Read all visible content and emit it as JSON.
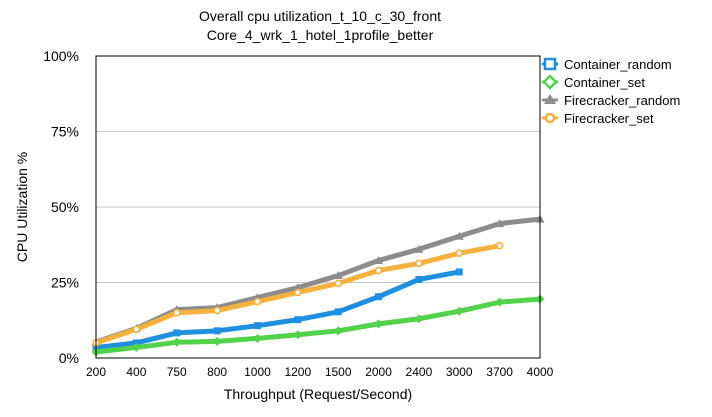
{
  "chart_data": {
    "type": "line",
    "title_line1": "Overall cpu utilization_t_10_c_30_front",
    "title_line2": "Core_4_wrk_1_hotel_1profile_better",
    "xlabel": "Throughput (Request/Second)",
    "ylabel": "CPU Utilization %",
    "categories": [
      "200",
      "400",
      "750",
      "800",
      "1000",
      "1200",
      "1500",
      "2000",
      "2400",
      "3000",
      "3700",
      "4000"
    ],
    "y_ticks": [
      "0%",
      "25%",
      "50%",
      "75%",
      "100%"
    ],
    "ylim": [
      0,
      100
    ],
    "grid": "horizontal",
    "legend_position": "right",
    "series": [
      {
        "name": "Container_random",
        "color": "#1f8fe0",
        "marker": "square",
        "values": [
          3.5,
          5,
          8.3,
          9,
          10.7,
          12.7,
          15.3,
          20.3,
          26,
          28.5,
          null,
          null
        ]
      },
      {
        "name": "Container_set",
        "color": "#52d14b",
        "marker": "diamond",
        "values": [
          2,
          3.5,
          5.2,
          5.5,
          6.5,
          7.7,
          9,
          11.3,
          13,
          15.5,
          18.5,
          19.5
        ]
      },
      {
        "name": "Firecracker_random",
        "color": "#8c8c8c",
        "marker": "triangle",
        "values": [
          5.3,
          9.8,
          16,
          16.7,
          20,
          23.3,
          27.3,
          32.3,
          36,
          40.3,
          44.5,
          46
        ]
      },
      {
        "name": "Firecracker_set",
        "color": "#f5b13d",
        "marker": "circle",
        "values": [
          5,
          9.5,
          15,
          15.7,
          18.7,
          21.7,
          24.7,
          29,
          31.3,
          34.7,
          37.2,
          null
        ]
      }
    ]
  }
}
